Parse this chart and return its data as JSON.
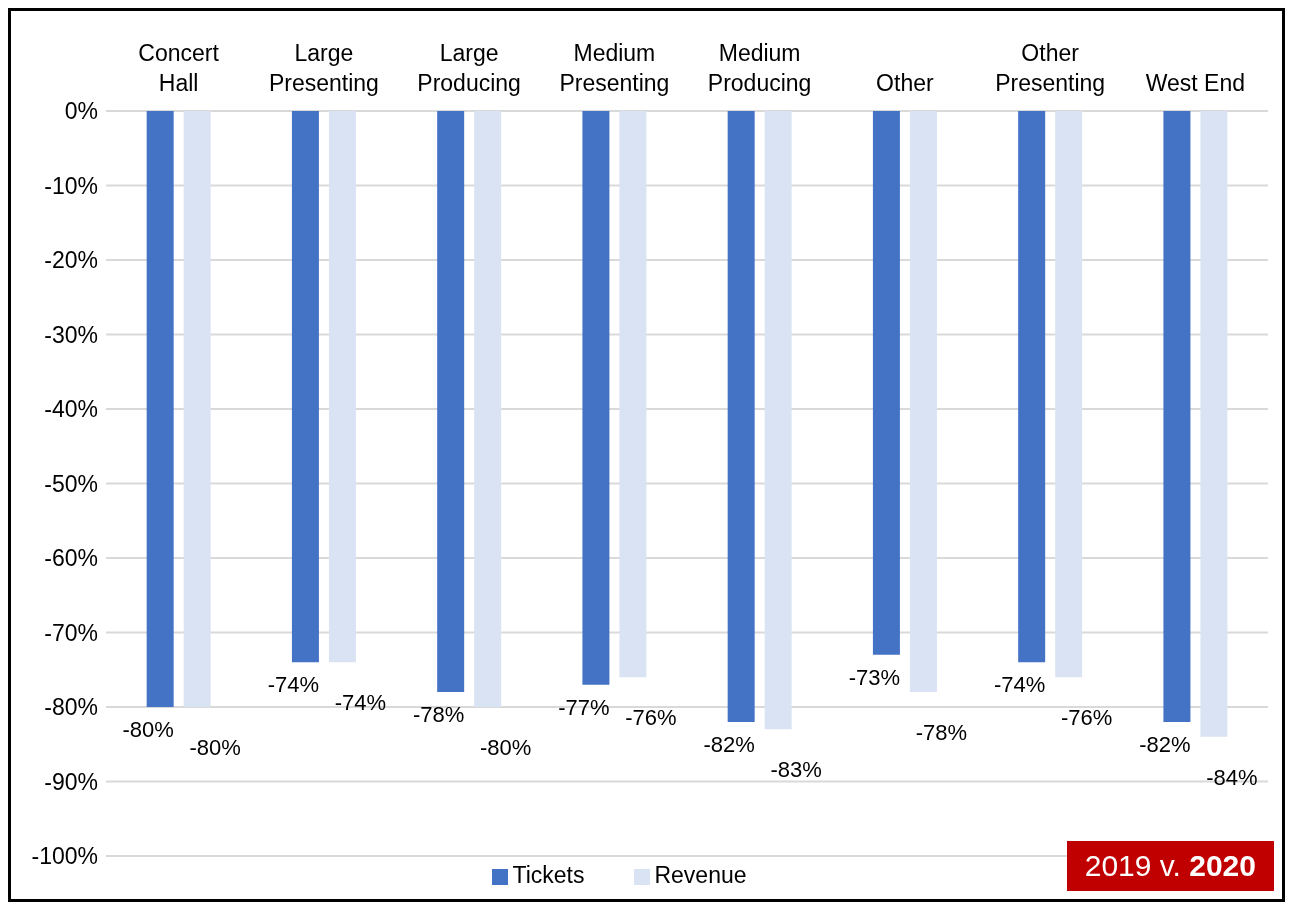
{
  "chart_data": {
    "type": "bar",
    "categories": [
      "Concert Hall",
      "Large Presenting",
      "Large Producing",
      "Medium Presenting",
      "Medium Producing",
      "Other",
      "Other Presenting",
      "West End"
    ],
    "series": [
      {
        "name": "Tickets",
        "color": "#4472c4",
        "values": [
          -80,
          -74,
          -78,
          -77,
          -82,
          -73,
          -74,
          -82
        ],
        "value_labels": [
          "-80%",
          "-74%",
          "-78%",
          "-77%",
          "-82%",
          "-73%",
          "-74%",
          "-82%"
        ]
      },
      {
        "name": "Revenue",
        "color": "#dae3f3",
        "values": [
          -80,
          -74,
          -80,
          -76,
          -83,
          -78,
          -76,
          -84
        ],
        "value_labels": [
          "-80%",
          "-74%",
          "-80%",
          "-76%",
          "-83%",
          "-78%",
          "-76%",
          "-84%"
        ]
      }
    ],
    "ylim": [
      -100,
      0
    ],
    "yticks": [
      {
        "value": 0,
        "label": "0%"
      },
      {
        "value": -10,
        "label": "-10%"
      },
      {
        "value": -20,
        "label": "-20%"
      },
      {
        "value": -30,
        "label": "-30%"
      },
      {
        "value": -40,
        "label": "-40%"
      },
      {
        "value": -50,
        "label": "-50%"
      },
      {
        "value": -60,
        "label": "-60%"
      },
      {
        "value": -70,
        "label": "-70%"
      },
      {
        "value": -80,
        "label": "-80%"
      },
      {
        "value": -90,
        "label": "-90%"
      },
      {
        "value": -100,
        "label": "-100%"
      }
    ],
    "grid": "y",
    "legend": "bottom",
    "annotations": [
      "2019 v. 2020"
    ]
  }
}
